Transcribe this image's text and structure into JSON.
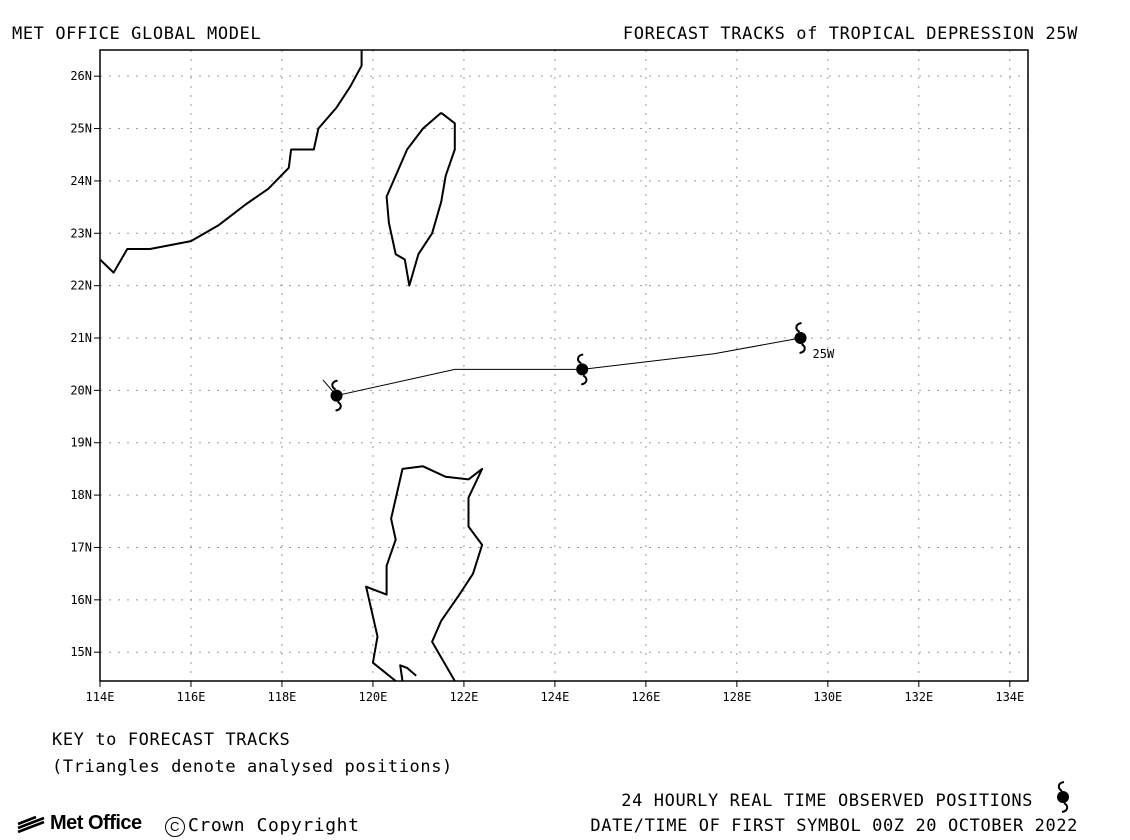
{
  "header": {
    "left": "MET OFFICE GLOBAL MODEL",
    "right": "FORECAST TRACKS of TROPICAL DEPRESSION 25W"
  },
  "map": {
    "lon_range": [
      114,
      134.4
    ],
    "lat_range": [
      14.45,
      26.5
    ],
    "grid": true,
    "lon_ticks": [
      "114E",
      "116E",
      "118E",
      "120E",
      "122E",
      "124E",
      "126E",
      "128E",
      "130E",
      "132E",
      "134E"
    ],
    "lat_ticks": [
      "26N",
      "25N",
      "24N",
      "23N",
      "22N",
      "21N",
      "20N",
      "19N",
      "18N",
      "17N",
      "16N",
      "15N"
    ],
    "storm_label": "25W",
    "track": {
      "points": [
        [
          129.4,
          21.0
        ],
        [
          127.5,
          20.7
        ],
        [
          124.6,
          20.4
        ],
        [
          121.8,
          20.4
        ],
        [
          119.2,
          19.9
        ],
        [
          118.9,
          20.2
        ]
      ],
      "observed_symbols": [
        [
          129.4,
          21.0
        ],
        [
          124.6,
          20.4
        ],
        [
          119.2,
          19.9
        ]
      ]
    },
    "coastlines": {
      "china": [
        [
          114.0,
          22.5
        ],
        [
          114.3,
          22.25
        ],
        [
          114.6,
          22.7
        ],
        [
          115.1,
          22.7
        ],
        [
          116.0,
          22.85
        ],
        [
          116.6,
          23.15
        ],
        [
          117.2,
          23.55
        ],
        [
          117.7,
          23.85
        ],
        [
          118.15,
          24.25
        ],
        [
          118.2,
          24.6
        ],
        [
          118.7,
          24.6
        ],
        [
          118.8,
          25.0
        ],
        [
          119.2,
          25.4
        ],
        [
          119.5,
          25.8
        ],
        [
          119.75,
          26.2
        ],
        [
          119.75,
          26.5
        ]
      ],
      "taiwan": [
        [
          121.5,
          25.3
        ],
        [
          121.1,
          25.0
        ],
        [
          120.75,
          24.6
        ],
        [
          120.3,
          23.7
        ],
        [
          120.35,
          23.2
        ],
        [
          120.5,
          22.6
        ],
        [
          120.7,
          22.5
        ],
        [
          120.8,
          22.0
        ],
        [
          121.0,
          22.6
        ],
        [
          121.3,
          23.0
        ],
        [
          121.5,
          23.6
        ],
        [
          121.6,
          24.1
        ],
        [
          121.8,
          24.6
        ],
        [
          121.8,
          25.1
        ],
        [
          121.5,
          25.3
        ]
      ],
      "luzon": [
        [
          121.8,
          14.45
        ],
        [
          121.3,
          15.2
        ],
        [
          121.5,
          15.6
        ],
        [
          121.9,
          16.1
        ],
        [
          122.2,
          16.5
        ],
        [
          122.4,
          17.05
        ],
        [
          122.1,
          17.4
        ],
        [
          122.1,
          17.95
        ],
        [
          122.4,
          18.5
        ],
        [
          122.1,
          18.3
        ],
        [
          121.6,
          18.35
        ],
        [
          121.1,
          18.55
        ],
        [
          120.65,
          18.5
        ],
        [
          120.4,
          17.55
        ],
        [
          120.5,
          17.15
        ],
        [
          120.3,
          16.65
        ],
        [
          120.3,
          16.1
        ],
        [
          119.85,
          16.25
        ],
        [
          120.1,
          15.3
        ],
        [
          120.0,
          14.8
        ],
        [
          120.5,
          14.45
        ]
      ],
      "luzon_inlet": [
        [
          120.65,
          14.45
        ],
        [
          120.6,
          14.75
        ],
        [
          120.75,
          14.7
        ],
        [
          120.95,
          14.55
        ]
      ]
    }
  },
  "key": {
    "title": "KEY to FORECAST TRACKS",
    "note": "(Triangles denote analysed positions)"
  },
  "legend": {
    "observed": "24 HOURLY REAL TIME OBSERVED POSITIONS",
    "datetime": "DATE/TIME OF FIRST SYMBOL 00Z 20 OCTOBER 2022"
  },
  "footer": {
    "logo_text": "Met Office",
    "copyright": "Crown Copyright"
  },
  "colors": {
    "line": "#000000",
    "grid": "#9a9a9a"
  }
}
